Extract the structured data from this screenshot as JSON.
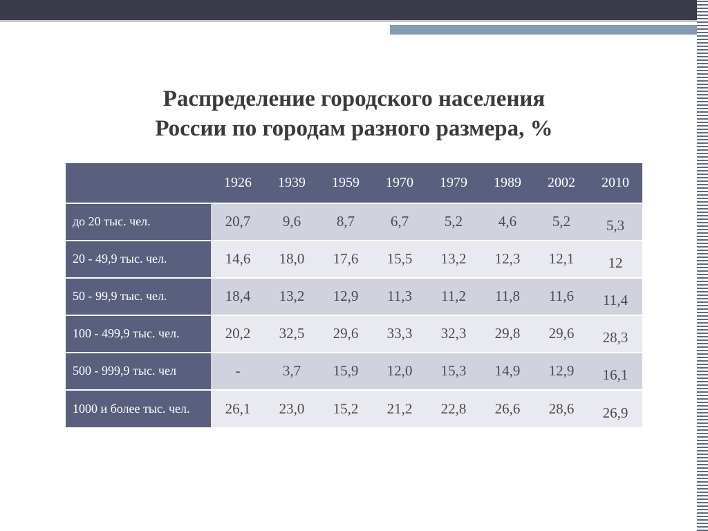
{
  "title_line1": "Распределение городского населения",
  "title_line2": "России по городам разного размера, %",
  "table": {
    "columns": [
      "1926",
      "1939",
      "1959",
      "1970",
      "1979",
      "1989",
      "2002",
      "2010"
    ],
    "rows": [
      {
        "label": "до 20 тыс. чел.",
        "values": [
          "20,7",
          "9,6",
          "8,7",
          "6,7",
          "5,2",
          "4,6",
          "5,2",
          "5,3"
        ]
      },
      {
        "label": "20 - 49,9 тыс. чел.",
        "values": [
          "14,6",
          "18,0",
          "17,6",
          "15,5",
          "13,2",
          "12,3",
          "12,1",
          "12"
        ]
      },
      {
        "label": "50 - 99,9 тыс. чел.",
        "values": [
          "18,4",
          "13,2",
          "12,9",
          "11,3",
          "11,2",
          "11,8",
          "11,6",
          "11,4"
        ]
      },
      {
        "label": "100 - 499,9 тыс. чел.",
        "values": [
          "20,2",
          "32,5",
          "29,6",
          "33,3",
          "32,3",
          "29,8",
          "29,6",
          "28,3"
        ]
      },
      {
        "label": "500 - 999,9 тыс. чел",
        "values": [
          "-",
          "3,7",
          "15,9",
          "12,0",
          "15,3",
          "14,9",
          "12,9",
          "16,1"
        ]
      },
      {
        "label": "1000 и более тыс. чел.",
        "values": [
          "26,1",
          "23,0",
          "15,2",
          "21,2",
          "22,8",
          "26,6",
          "28,6",
          "26,9"
        ]
      }
    ],
    "header_bg": "#595f7d",
    "row_odd_bg": "#d0d2dd",
    "row_even_bg": "#e9eaef",
    "text_color": "#4a4a4a",
    "header_text_color": "#ffffff"
  }
}
